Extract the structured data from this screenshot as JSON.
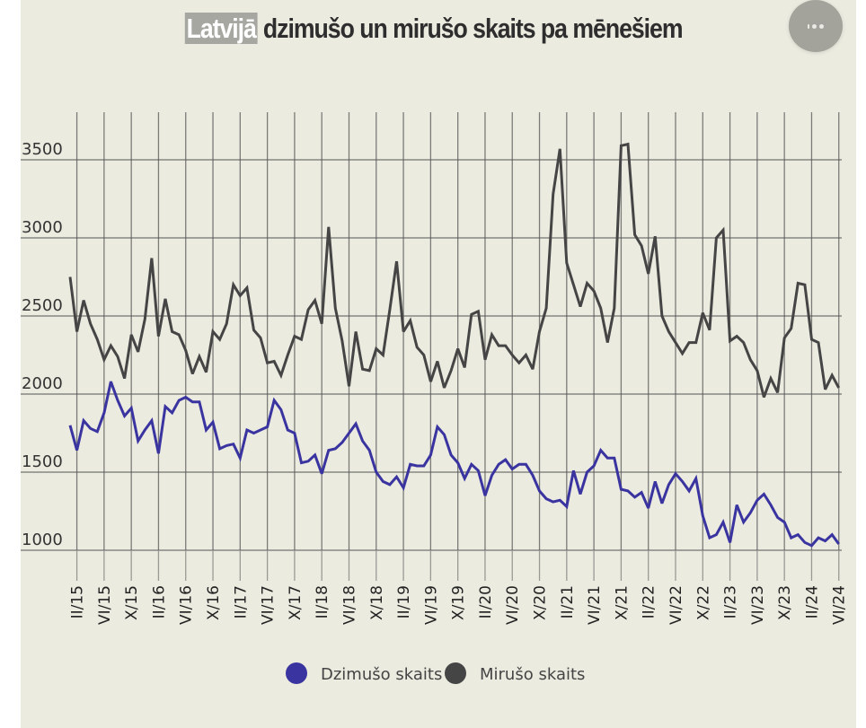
{
  "page": {
    "title_highlight": "Latvijā",
    "title_rest": " dzimušo un mirušo skaits pa mēnešiem",
    "menu_button_icon": "more-dots-icon"
  },
  "colors": {
    "births": "#3a34a0",
    "deaths": "#454545",
    "background": "#ecebe0",
    "grid": "#555555"
  },
  "chart_data": {
    "type": "line",
    "title": "Latvijā dzimušo un mirušo skaits pa mēnešiem",
    "xlabel": "",
    "ylabel": "",
    "ylim": [
      1000,
      3500
    ],
    "yticks": [
      1000,
      1500,
      2000,
      2500,
      3000,
      3500
    ],
    "grid": true,
    "legend_position": "bottom-center",
    "x_start": "2015-01",
    "x_end": "2024-06",
    "x_tick_labels": [
      "II/15",
      "VI/15",
      "X/15",
      "II/16",
      "VI/16",
      "X/16",
      "II/17",
      "VI/17",
      "X/17",
      "II/18",
      "VI/18",
      "X/18",
      "II/19",
      "VI/19",
      "X/19",
      "II/20",
      "VI/20",
      "X/20",
      "II/21",
      "VI/21",
      "X/21",
      "II/22",
      "VI/22",
      "X/22",
      "II/23",
      "VI/23",
      "X/23",
      "II/24",
      "VI/24"
    ],
    "x_tick_month_index": [
      1,
      5,
      9,
      13,
      17,
      21,
      25,
      29,
      33,
      37,
      41,
      45,
      49,
      53,
      57,
      61,
      65,
      69,
      73,
      77,
      81,
      85,
      89,
      93,
      97,
      101,
      105,
      109,
      113
    ],
    "series": [
      {
        "name": "Dzimušo skaits",
        "color": "#3a34a0",
        "values": [
          1800,
          1640,
          1830,
          1780,
          1760,
          1880,
          2080,
          1960,
          1860,
          1910,
          1700,
          1770,
          1830,
          1620,
          1920,
          1880,
          1960,
          1980,
          1950,
          1950,
          1770,
          1820,
          1650,
          1670,
          1680,
          1590,
          1770,
          1750,
          1770,
          1790,
          1960,
          1900,
          1770,
          1750,
          1560,
          1570,
          1610,
          1490,
          1640,
          1650,
          1690,
          1750,
          1810,
          1700,
          1640,
          1500,
          1440,
          1420,
          1470,
          1400,
          1550,
          1540,
          1540,
          1610,
          1790,
          1740,
          1610,
          1560,
          1460,
          1550,
          1510,
          1350,
          1480,
          1550,
          1580,
          1520,
          1550,
          1550,
          1480,
          1380,
          1330,
          1310,
          1320,
          1280,
          1510,
          1360,
          1500,
          1540,
          1640,
          1590,
          1590,
          1390,
          1380,
          1340,
          1370,
          1270,
          1440,
          1300,
          1420,
          1490,
          1440,
          1380,
          1460,
          1220,
          1080,
          1100,
          1180,
          1050,
          1290,
          1180,
          1240,
          1320,
          1360,
          1290,
          1210,
          1180,
          1080,
          1100,
          1050,
          1030,
          1080,
          1060,
          1100,
          1040
        ]
      },
      {
        "name": "Mirušo skaits",
        "color": "#454545",
        "values": [
          2750,
          2400,
          2600,
          2450,
          2350,
          2220,
          2310,
          2240,
          2100,
          2380,
          2270,
          2480,
          2870,
          2370,
          2610,
          2400,
          2380,
          2280,
          2130,
          2240,
          2140,
          2400,
          2350,
          2450,
          2700,
          2630,
          2680,
          2410,
          2360,
          2200,
          2210,
          2120,
          2250,
          2370,
          2350,
          2540,
          2600,
          2450,
          3070,
          2550,
          2340,
          2050,
          2400,
          2160,
          2150,
          2290,
          2250,
          2540,
          2850,
          2400,
          2470,
          2300,
          2250,
          2080,
          2210,
          2040,
          2150,
          2290,
          2170,
          2510,
          2530,
          2220,
          2380,
          2310,
          2310,
          2250,
          2200,
          2250,
          2160,
          2400,
          2550,
          3280,
          3570,
          2840,
          2700,
          2560,
          2710,
          2660,
          2550,
          2330,
          2550,
          3590,
          3600,
          3020,
          2950,
          2770,
          3010,
          2500,
          2400,
          2330,
          2260,
          2330,
          2330,
          2520,
          2410,
          3000,
          3050,
          2340,
          2370,
          2330,
          2220,
          2150,
          1980,
          2100,
          2010,
          2360,
          2420,
          2710,
          2700,
          2350,
          2330,
          2030,
          2120,
          2040
        ]
      }
    ]
  }
}
